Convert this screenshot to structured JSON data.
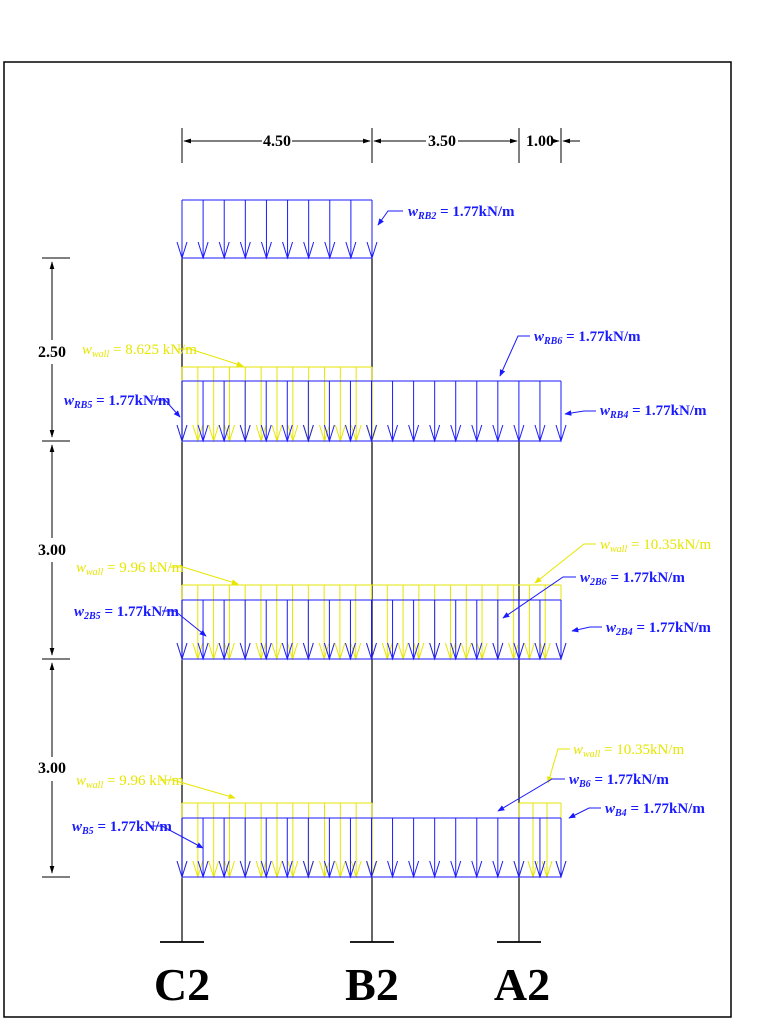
{
  "colors": {
    "line": "#000000",
    "load_uniform": "#1a1aff",
    "load_wall": "#e6e600",
    "background": "#ffffff"
  },
  "spans": [
    "4.50",
    "3.50",
    "1.00"
  ],
  "storey_heights": [
    "2.50",
    "3.00",
    "3.00"
  ],
  "columns": [
    "C2",
    "B2",
    "A2"
  ],
  "loads": {
    "rb2": {
      "var": "w",
      "sub": "RB2",
      "value": " = 1.77kN/m"
    },
    "rb6": {
      "var": "w",
      "sub": "RB6",
      "value": " = 1.77kN/m"
    },
    "roof_wall": {
      "var": "w",
      "sub": "wall",
      "value": " = 8.625 kN/m"
    },
    "rb5": {
      "var": "w",
      "sub": "RB5",
      "value": " = 1.77kN/m"
    },
    "rb4": {
      "var": "w",
      "sub": "RB4",
      "value": " = 1.77kN/m"
    },
    "l2_wall_right": {
      "var": "w",
      "sub": "wall",
      "value": " = 10.35kN/m"
    },
    "l2_wall_left": {
      "var": "w",
      "sub": "wall",
      "value": " = 9.96 kN/m"
    },
    "b2b6": {
      "var": "w",
      "sub": "2B6",
      "value": " = 1.77kN/m"
    },
    "b2b5": {
      "var": "w",
      "sub": "2B5",
      "value": " = 1.77kN/m"
    },
    "b2b4": {
      "var": "w",
      "sub": "2B4",
      "value": " = 1.77kN/m"
    },
    "l1_wall_right": {
      "var": "w",
      "sub": "wall",
      "value": " = 10.35kN/m"
    },
    "b6": {
      "var": "w",
      "sub": "B6",
      "value": " = 1.77kN/m"
    },
    "l1_wall_left": {
      "var": "w",
      "sub": "wall",
      "value": " = 9.96 kN/m"
    },
    "b4": {
      "var": "w",
      "sub": "B4",
      "value": " = 1.77kN/m"
    },
    "b5": {
      "var": "w",
      "sub": "B5",
      "value": " = 1.77kN/m"
    }
  }
}
